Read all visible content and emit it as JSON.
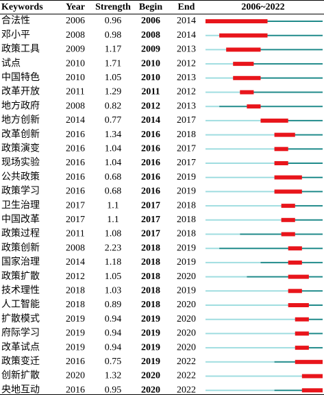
{
  "table": {
    "headers": [
      "Keywords",
      "Year",
      "Strength",
      "Begin",
      "End",
      "2006~2022"
    ],
    "rows": [
      [
        "合法性",
        2006,
        0.96,
        2006,
        2014
      ],
      [
        "邓小平",
        2008,
        0.98,
        2008,
        2014
      ],
      [
        "政策工具",
        2009,
        1.17,
        2009,
        2013
      ],
      [
        "试点",
        2010,
        1.71,
        2010,
        2012
      ],
      [
        "中国特色",
        2010,
        1.05,
        2010,
        2013
      ],
      [
        "改革开放",
        2011,
        1.29,
        2011,
        2012
      ],
      [
        "地方政府",
        2008,
        0.82,
        2012,
        2013
      ],
      [
        "地方创新",
        2014,
        0.77,
        2014,
        2017
      ],
      [
        "改革创新",
        2016,
        1.34,
        2016,
        2018
      ],
      [
        "政策演变",
        2016,
        1.04,
        2016,
        2017
      ],
      [
        "现场实验",
        2016,
        1.04,
        2016,
        2017
      ],
      [
        "公共政策",
        2016,
        0.68,
        2016,
        2019
      ],
      [
        "政策学习",
        2016,
        0.68,
        2016,
        2019
      ],
      [
        "卫生治理",
        2017,
        1.1,
        2017,
        2018
      ],
      [
        "中国改革",
        2017,
        1.1,
        2017,
        2018
      ],
      [
        "政策过程",
        2011,
        1.08,
        2017,
        2018
      ],
      [
        "政策创新",
        2008,
        2.23,
        2018,
        2019
      ],
      [
        "国家治理",
        2014,
        1.18,
        2018,
        2019
      ],
      [
        "政策扩散",
        2012,
        1.05,
        2018,
        2020
      ],
      [
        "技术理性",
        2018,
        1.03,
        2018,
        2019
      ],
      [
        "人工智能",
        2018,
        0.89,
        2018,
        2020
      ],
      [
        "扩散模式",
        2019,
        0.94,
        2019,
        2020
      ],
      [
        "府际学习",
        2019,
        0.94,
        2019,
        2020
      ],
      [
        "改革试点",
        2019,
        0.94,
        2019,
        2020
      ],
      [
        "政策变迁",
        2016,
        0.75,
        2019,
        2022
      ],
      [
        "创新扩散",
        2020,
        1.32,
        2020,
        2022
      ],
      [
        "央地互动",
        2016,
        0.95,
        2020,
        2022
      ]
    ]
  }
}
